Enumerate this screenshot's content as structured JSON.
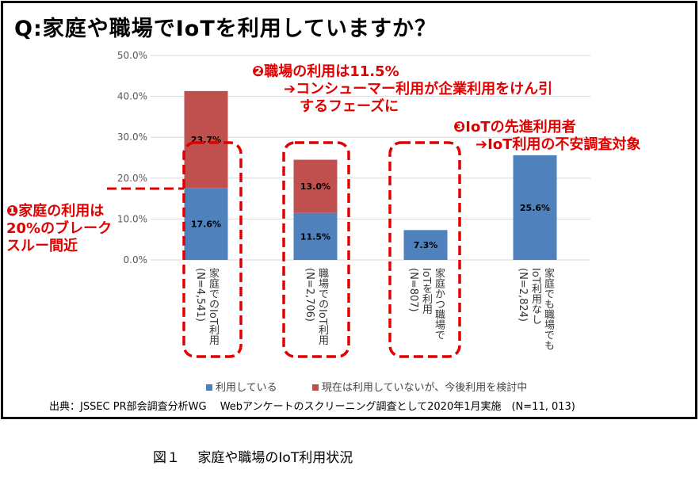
{
  "title": "Q:家庭や職場でIoTを利用していますか？",
  "chart_data": {
    "type": "bar",
    "stacked": true,
    "categories": [
      [
        "家庭でのIoT利用",
        "(N=4,541)"
      ],
      [
        "職場でのIoT利用",
        "(N=2,706)"
      ],
      [
        "家庭かつ職場で",
        "IoTを利用",
        "(N=807)"
      ],
      [
        "家庭でも職場でも",
        "IoT利用なし",
        "(N=2,824)"
      ]
    ],
    "series": [
      {
        "name": "利用している",
        "color": "#4f81bd",
        "values": [
          17.6,
          11.5,
          7.3,
          25.6
        ],
        "labels": [
          "17.6%",
          "11.5%",
          "7.3%",
          "25.6%"
        ]
      },
      {
        "name": "現在は利用していないが、今後利用を検討中",
        "color": "#c0504d",
        "values": [
          23.7,
          13.0,
          null,
          null
        ],
        "labels": [
          "23.7%",
          "13.0%",
          "",
          ""
        ]
      }
    ],
    "ylim": [
      0,
      50
    ],
    "yticks": [
      "0.0%",
      "10.0%",
      "20.0%",
      "30.0%",
      "40.0%",
      "50.0%"
    ],
    "grid": true,
    "legend": "bottom"
  },
  "annotations": {
    "a1": [
      "❶家庭の利用は",
      "20%のブレーク",
      "スルー間近"
    ],
    "a2": [
      "❷職場の利用は11.5%",
      "➔コンシューマー利用が企業利用をけん引",
      "するフェーズに"
    ],
    "a3": [
      "❸IoTの先進利用者",
      "➔IoT利用の不安調査対象"
    ]
  },
  "source": "出典：JSSEC PR部会調査分析WG　 Webアンケートのスクリーニング調査として2020年1月実施　(N=11, 013)",
  "caption": "図１　 家庭や職場のIoT利用状況"
}
